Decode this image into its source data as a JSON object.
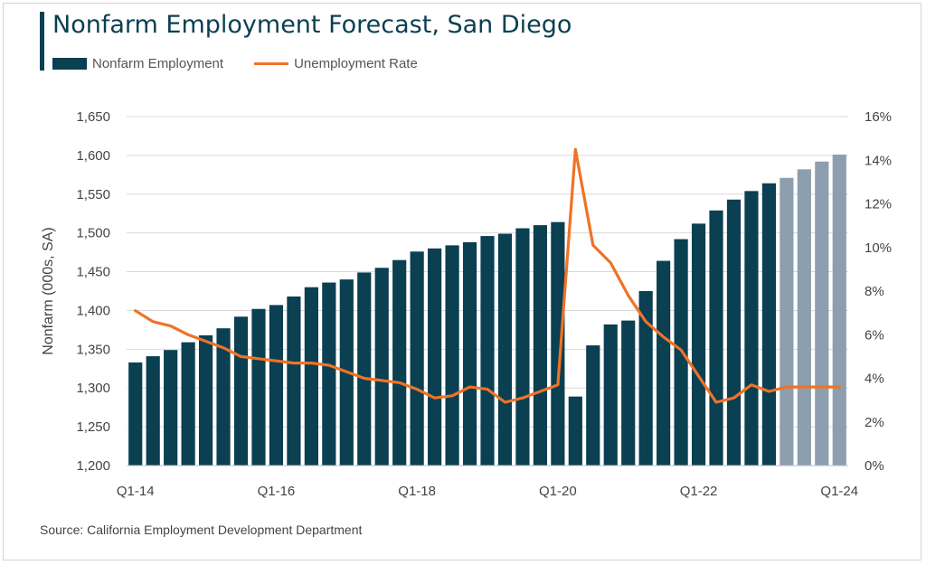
{
  "chart_data": {
    "type": "bar",
    "title": "Nonfarm Employment Forecast, San Diego",
    "ylabel": "Nonfarm (000s, SA)",
    "y2label": "",
    "ylim": [
      1200,
      1650
    ],
    "yticks": [
      "1,200",
      "1,250",
      "1,300",
      "1,350",
      "1,400",
      "1,450",
      "1,500",
      "1,550",
      "1,600",
      "1,650"
    ],
    "y2lim": [
      0,
      16
    ],
    "y2ticks": [
      "0%",
      "2%",
      "4%",
      "6%",
      "8%",
      "10%",
      "12%",
      "14%",
      "16%"
    ],
    "xtick_labels": [
      "Q1-14",
      "Q1-16",
      "Q1-18",
      "Q1-20",
      "Q1-22",
      "Q1-24"
    ],
    "categories": [
      "Q1-14",
      "Q2-14",
      "Q3-14",
      "Q4-14",
      "Q1-15",
      "Q2-15",
      "Q3-15",
      "Q4-15",
      "Q1-16",
      "Q2-16",
      "Q3-16",
      "Q4-16",
      "Q1-17",
      "Q2-17",
      "Q3-17",
      "Q4-17",
      "Q1-18",
      "Q2-18",
      "Q3-18",
      "Q4-18",
      "Q1-19",
      "Q2-19",
      "Q3-19",
      "Q4-19",
      "Q1-20",
      "Q2-20",
      "Q3-20",
      "Q4-20",
      "Q1-21",
      "Q2-21",
      "Q3-21",
      "Q4-21",
      "Q1-22",
      "Q2-22",
      "Q3-22",
      "Q4-22",
      "Q1-23",
      "Q2-23",
      "Q3-23",
      "Q4-23",
      "Q1-24"
    ],
    "forecast_start_index": 37,
    "series": [
      {
        "name": "Nonfarm Employment",
        "type": "bar",
        "axis": "left",
        "values": [
          1333,
          1341,
          1349,
          1359,
          1368,
          1377,
          1392,
          1402,
          1407,
          1418,
          1430,
          1436,
          1440,
          1449,
          1455,
          1465,
          1476,
          1480,
          1484,
          1488,
          1496,
          1499,
          1506,
          1510,
          1514,
          1289,
          1355,
          1382,
          1387,
          1425,
          1464,
          1492,
          1512,
          1529,
          1543,
          1554,
          1564,
          1571,
          1582,
          1592,
          1601
        ]
      },
      {
        "name": "Unemployment Rate",
        "type": "line",
        "axis": "right",
        "values": [
          7.1,
          6.6,
          6.4,
          6.0,
          5.7,
          5.4,
          5.0,
          4.9,
          4.8,
          4.7,
          4.7,
          4.6,
          4.3,
          4.0,
          3.9,
          3.8,
          3.5,
          3.1,
          3.2,
          3.6,
          3.5,
          2.9,
          3.1,
          3.4,
          3.7,
          14.5,
          10.1,
          9.3,
          7.8,
          6.6,
          5.9,
          5.3,
          4.1,
          2.9,
          3.1,
          3.7,
          3.4,
          3.6,
          3.6,
          3.6,
          3.6
        ]
      }
    ],
    "colors": {
      "actual": "#0b3f52",
      "forecast": "#8d9eae",
      "line": "#ee7326"
    },
    "legend": "top-left",
    "grid": true,
    "source": "Source: California Employment Development Department"
  }
}
